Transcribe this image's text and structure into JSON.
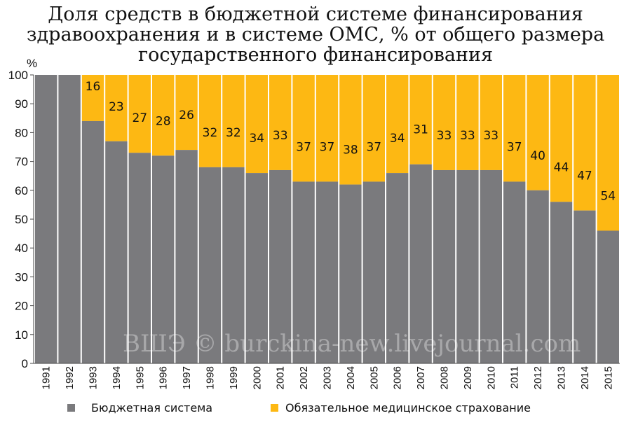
{
  "chart_data": {
    "type": "bar",
    "stacked": true,
    "title": "Доля средств в бюджетной системе финансирования\nздравоохранения и в системе ОМС, % от общего размера\nгосударственного финансирования",
    "ylabel": "%",
    "xlabel": "",
    "ylim": [
      0,
      100
    ],
    "yticks": [
      0,
      10,
      20,
      30,
      40,
      50,
      60,
      70,
      80,
      90,
      100
    ],
    "grid": false,
    "legend": "bottom",
    "categories": [
      "1991",
      "1992",
      "1993",
      "1994",
      "1995",
      "1996",
      "1997",
      "1998",
      "1999",
      "2000",
      "2001",
      "2002",
      "2003",
      "2004",
      "2005",
      "2006",
      "2007",
      "2008",
      "2009",
      "2010",
      "2011",
      "2012",
      "2013",
      "2014",
      "2015"
    ],
    "series": [
      {
        "name": "Бюджетная система",
        "color": "#7a7a7d",
        "values": [
          100,
          100,
          84,
          77,
          73,
          72,
          74,
          68,
          68,
          66,
          67,
          63,
          63,
          62,
          63,
          66,
          69,
          67,
          67,
          67,
          63,
          60,
          56,
          53,
          46
        ]
      },
      {
        "name": "Обязательное медицинское страхование",
        "color": "#fdb813",
        "values": [
          0,
          0,
          16,
          23,
          27,
          28,
          26,
          32,
          32,
          34,
          33,
          37,
          37,
          38,
          37,
          34,
          31,
          33,
          33,
          33,
          37,
          40,
          44,
          47,
          54
        ],
        "labels": [
          "",
          "",
          "16",
          "23",
          "27",
          "28",
          "26",
          "32",
          "32",
          "34",
          "33",
          "37",
          "37",
          "38",
          "37",
          "34",
          "31",
          "33",
          "33",
          "33",
          "37",
          "40",
          "44",
          "47",
          "54"
        ]
      }
    ],
    "watermark": "ВШЭ © burckina-new.livejournal.com"
  }
}
